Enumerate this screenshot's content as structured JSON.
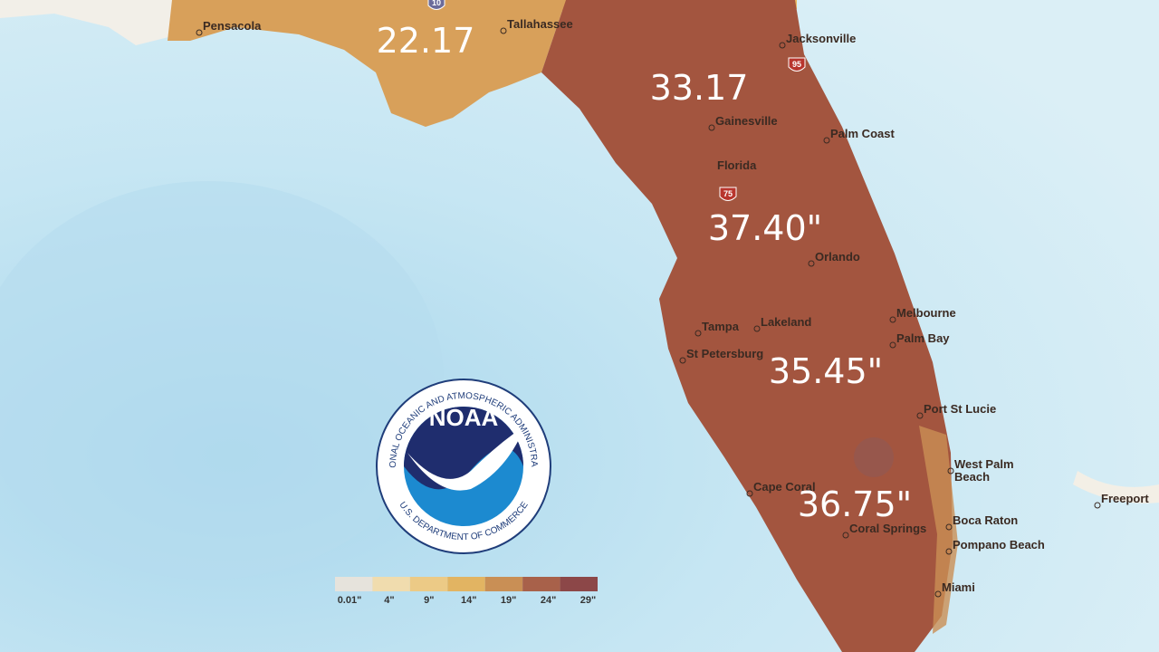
{
  "map": {
    "region_values": [
      "22.17",
      "33.17",
      "37.40\"",
      "35.45\"",
      "36.75\""
    ],
    "cities": [
      "Pensacola",
      "Tallahassee",
      "Jacksonville",
      "Gainesville",
      "Palm Coast",
      "Florida",
      "Orlando",
      "Melbourne",
      "Palm Bay",
      "Tampa",
      "Lakeland",
      "St Petersburg",
      "Port St Lucie",
      "West Palm",
      "Beach",
      "Cape Coral",
      "Boca Raton",
      "Coral Springs",
      "Pompano Beach",
      "Miami",
      "Freeport"
    ],
    "highways": [
      "10",
      "95",
      "75"
    ],
    "legend": {
      "labels": [
        "0.01\"",
        "4\"",
        "9\"",
        "14\"",
        "19\"",
        "24\"",
        "29\""
      ],
      "colors": [
        "#e6e3dc",
        "#f0dcae",
        "#ecca86",
        "#e2b462",
        "#c98f55",
        "#a8614a",
        "#8c4748"
      ]
    }
  },
  "logo": {
    "name": "NOAA",
    "ring_top": "NATIONAL OCEANIC AND ATMOSPHERIC ADMINISTRATION",
    "ring_bottom": "U.S. DEPARTMENT OF COMMERCE"
  }
}
